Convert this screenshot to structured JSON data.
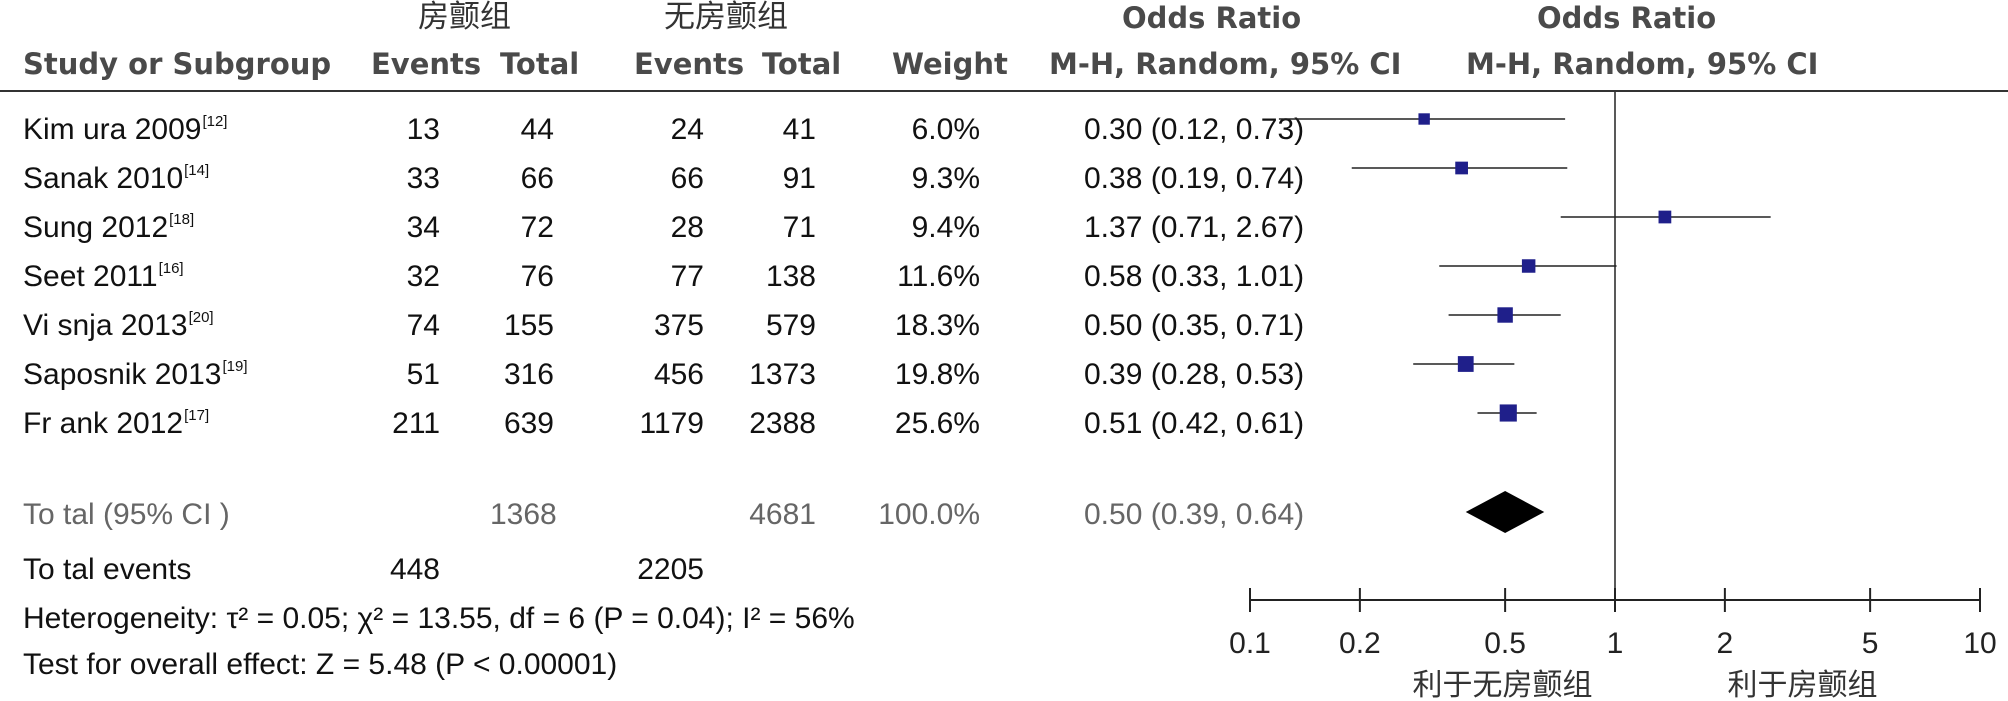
{
  "headers": {
    "group1": "房颤组",
    "group2": "无房颤组",
    "study": "Study or Subgroup",
    "events1": "Events",
    "total1": "Total",
    "events2": "Events",
    "total2": "Total",
    "weight": "Weight",
    "or_title": "Odds Ratio",
    "or_method": "M-H, Random, 95% CI",
    "plot_title": "Odds Ratio",
    "plot_method": "M-H, Random, 95% CI"
  },
  "studies": [
    {
      "name": "Kim ura 2009",
      "ref": "[12]",
      "e1": "13",
      "t1": "44",
      "e2": "24",
      "t2": "41",
      "weight": "6.0%",
      "ci": "0.30 (0.12, 0.73)"
    },
    {
      "name": "Sanak 2010",
      "ref": "[14]",
      "e1": "33",
      "t1": "66",
      "e2": "66",
      "t2": "91",
      "weight": "9.3%",
      "ci": "0.38 (0.19, 0.74)"
    },
    {
      "name": "Sung 2012",
      "ref": "[18]",
      "e1": "34",
      "t1": "72",
      "e2": "28",
      "t2": "71",
      "weight": "9.4%",
      "ci": "1.37 (0.71, 2.67)"
    },
    {
      "name": "Seet 2011",
      "ref": "[16]",
      "e1": "32",
      "t1": "76",
      "e2": "77",
      "t2": "138",
      "weight": "11.6%",
      "ci": "0.58 (0.33, 1.01)"
    },
    {
      "name": "Vi snja 2013",
      "ref": "[20]",
      "e1": "74",
      "t1": "155",
      "e2": "375",
      "t2": "579",
      "weight": "18.3%",
      "ci": "0.50 (0.35, 0.71)"
    },
    {
      "name": "Saposnik 2013",
      "ref": "[19]",
      "e1": "51",
      "t1": "316",
      "e2": "456",
      "t2": "1373",
      "weight": "19.8%",
      "ci": "0.39 (0.28, 0.53)"
    },
    {
      "name": "Fr ank 2012",
      "ref": "[17]",
      "e1": "211",
      "t1": "639",
      "e2": "1179",
      "t2": "2388",
      "weight": "25.6%",
      "ci": "0.51 (0.42, 0.61)"
    }
  ],
  "total": {
    "label": "To tal (95% CI )",
    "t1": "1368",
    "t2": "4681",
    "weight": "100.0%",
    "ci": "0.50 (0.39, 0.64)"
  },
  "total_events": {
    "label": "To tal events",
    "e1": "448",
    "e2": "2205"
  },
  "heterogeneity": "Heterogeneity: τ² = 0.05; χ² = 13.55, df = 6 (P = 0.04); I² = 56%",
  "overall_effect": "Test for overall effect: Z = 5.48 (P < 0.00001)",
  "axis": {
    "favours_left": "利于无房颤组",
    "favours_right": "利于房颤组"
  },
  "colors": {
    "marker": "#1f1f8a",
    "line": "#222222",
    "diamond": "#000000"
  },
  "chart_data": {
    "type": "scatter",
    "scale": "log",
    "xlim": [
      0.1,
      10
    ],
    "reference_line": 1,
    "ticks": [
      0.1,
      0.2,
      0.5,
      1,
      2,
      5,
      10
    ],
    "tick_labels": [
      "0.1",
      "0.2",
      "0.5",
      "1",
      "2",
      "5",
      "10"
    ],
    "xlabel": "",
    "series": [
      {
        "study": "Kim ura 2009",
        "or": 0.3,
        "lower": 0.12,
        "upper": 0.73,
        "weight": 6.0
      },
      {
        "study": "Sanak 2010",
        "or": 0.38,
        "lower": 0.19,
        "upper": 0.74,
        "weight": 9.3
      },
      {
        "study": "Sung 2012",
        "or": 1.37,
        "lower": 0.71,
        "upper": 2.67,
        "weight": 9.4
      },
      {
        "study": "Seet 2011",
        "or": 0.58,
        "lower": 0.33,
        "upper": 1.01,
        "weight": 11.6
      },
      {
        "study": "Vi snja 2013",
        "or": 0.5,
        "lower": 0.35,
        "upper": 0.71,
        "weight": 18.3
      },
      {
        "study": "Saposnik 2013",
        "or": 0.39,
        "lower": 0.28,
        "upper": 0.53,
        "weight": 19.8
      },
      {
        "study": "Fr ank 2012",
        "or": 0.51,
        "lower": 0.42,
        "upper": 0.61,
        "weight": 25.6
      }
    ],
    "pooled": {
      "or": 0.5,
      "lower": 0.39,
      "upper": 0.64
    }
  }
}
